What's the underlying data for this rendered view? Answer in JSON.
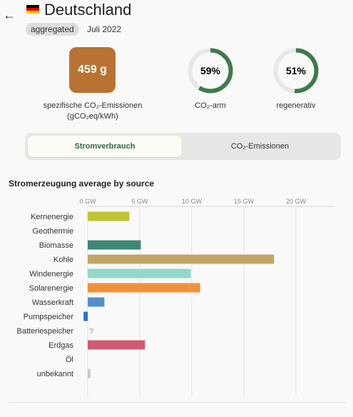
{
  "header": {
    "back_icon": "arrow-left-icon",
    "flag": {
      "colors": [
        "#000000",
        "#dd0000",
        "#ffce00"
      ]
    },
    "country": "Deutschland",
    "badge": "aggregated",
    "date": "Juli 2022"
  },
  "stats": {
    "intensity": {
      "value": "459 g",
      "label": "spezifische CO₂-Emissionen",
      "unit": "(gCO₂eq/kWh)",
      "color": "#b87333"
    },
    "low_carbon": {
      "value": "59%",
      "fraction": 0.59,
      "label": "CO₂-arm",
      "color": "#3f7a4c"
    },
    "renewable": {
      "value": "51%",
      "fraction": 0.51,
      "label": "regenerativ",
      "color": "#3f7a4c"
    }
  },
  "tabs": [
    {
      "label": "Stromverbrauch",
      "active": true
    },
    {
      "label": "CO₂-Emissionen",
      "active": false
    }
  ],
  "chart_data": {
    "type": "bar",
    "orientation": "horizontal",
    "title": "Stromerzeugung average by source",
    "x_ticks": [
      "0 GW",
      "5 GW",
      "10 GW",
      "15 GW",
      "20 GW"
    ],
    "xlim": [
      0,
      24
    ],
    "grid": true,
    "categories": [
      "Kernenergie",
      "Geothermie",
      "Biomasse",
      "Kohle",
      "Windenergie",
      "Solarenergie",
      "Wasserkraft",
      "Pumpspeicher",
      "Batteriespeicher",
      "Erdgas",
      "Öl",
      "unbekannt"
    ],
    "values": [
      4.0,
      0,
      5.1,
      17.9,
      9.9,
      10.8,
      1.6,
      -0.4,
      null,
      5.5,
      0,
      0.25
    ],
    "colors": [
      "#bfc532",
      "#cccccc",
      "#3f8874",
      "#c2a565",
      "#93d8c8",
      "#f0923b",
      "#5690c6",
      "#2f6fd6",
      "#cccccc",
      "#cf5b73",
      "#cccccc",
      "#c6c6cc"
    ],
    "missing_marker": "?"
  }
}
